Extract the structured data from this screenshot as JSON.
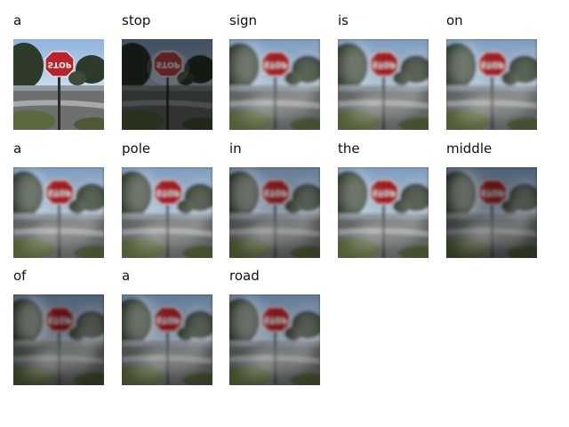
{
  "caption_words": [
    "a",
    "stop",
    "sign",
    "is",
    "on",
    "a",
    "pole",
    "in",
    "the",
    "middle",
    "of",
    "a",
    "road"
  ],
  "scene": {
    "sign_text": "STOP",
    "sign_color": "#b8232c",
    "sky_color": "#cfe0f2",
    "tree_color": "#2e3a2a",
    "road_color": "#6d6f70",
    "grass_color": "#5b6b3e"
  },
  "attention_tiles": [
    {
      "word": "a",
      "style": "original"
    },
    {
      "word": "stop",
      "style": "dark-focus"
    },
    {
      "word": "sign",
      "style": "blur-light"
    },
    {
      "word": "is",
      "style": "blur-light"
    },
    {
      "word": "on",
      "style": "blur-light"
    },
    {
      "word": "a",
      "style": "blur-light"
    },
    {
      "word": "pole",
      "style": "blur-light"
    },
    {
      "word": "in",
      "style": "blur-mixed"
    },
    {
      "word": "the",
      "style": "blur-light"
    },
    {
      "word": "middle",
      "style": "blur-dark"
    },
    {
      "word": "of",
      "style": "blur-dark"
    },
    {
      "word": "a",
      "style": "blur-mixed"
    },
    {
      "word": "road",
      "style": "blur-mixed"
    }
  ]
}
